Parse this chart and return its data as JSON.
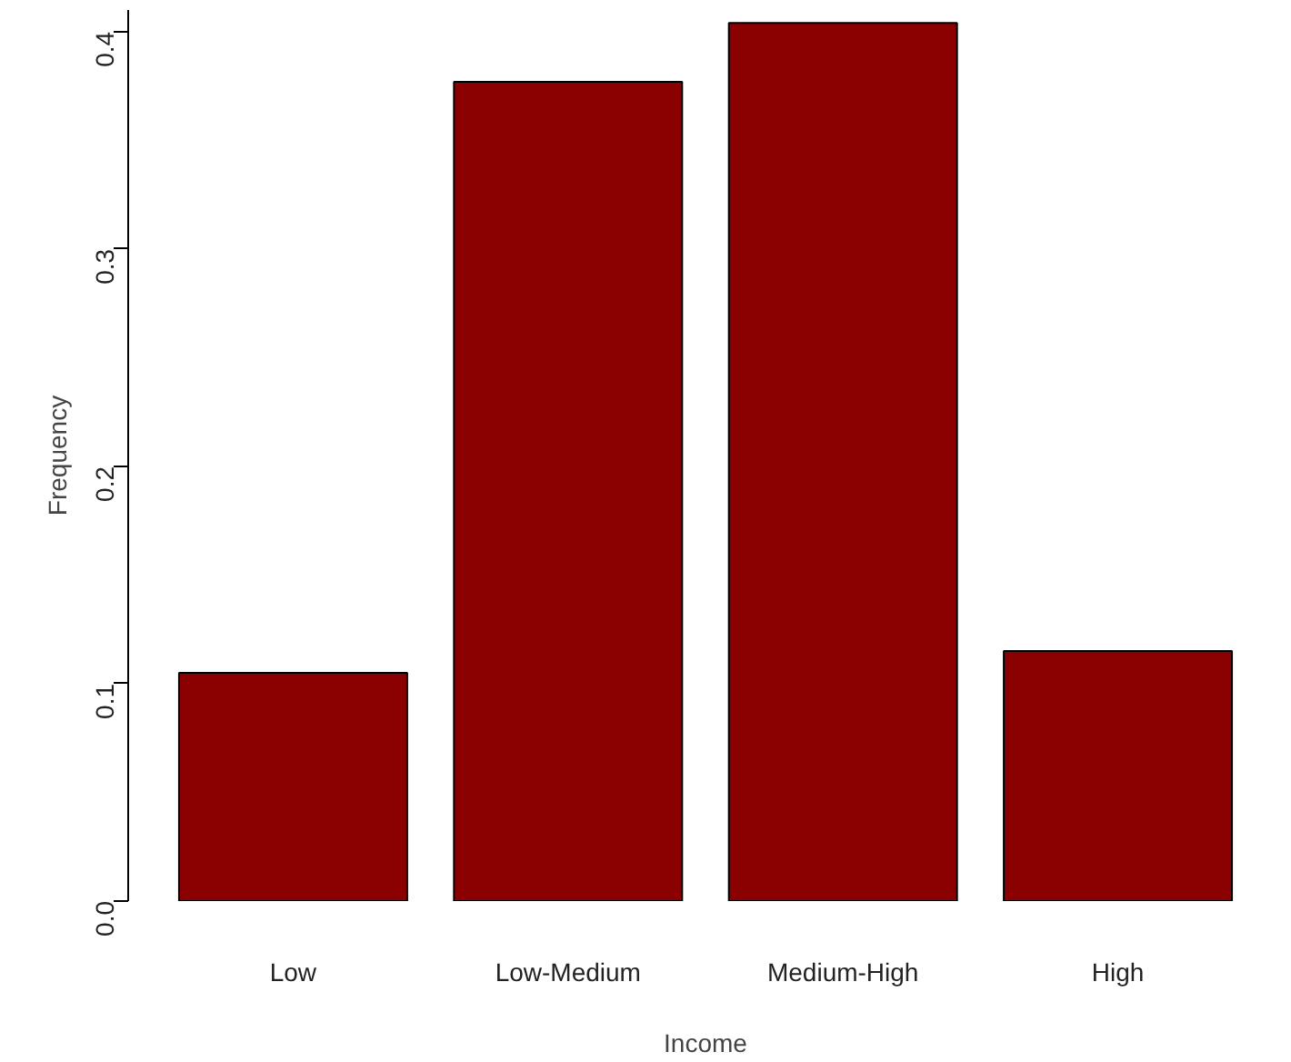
{
  "chart_data": {
    "type": "bar",
    "xlabel": "Income",
    "ylabel": "Frequency",
    "categories": [
      "Low",
      "Low-Medium",
      "Medium-High",
      "High"
    ],
    "values": [
      0.105,
      0.377,
      0.404,
      0.115
    ],
    "color": "#8b0000",
    "ylim": [
      0,
      0.41
    ],
    "yticks": [
      {
        "value": 0,
        "label": "0.0"
      },
      {
        "value": 0.1,
        "label": "0.1"
      },
      {
        "value": 0.2,
        "label": "0.2"
      },
      {
        "value": 0.3,
        "label": "0.3"
      },
      {
        "value": 0.4,
        "label": "0.4"
      }
    ],
    "grid": false
  }
}
